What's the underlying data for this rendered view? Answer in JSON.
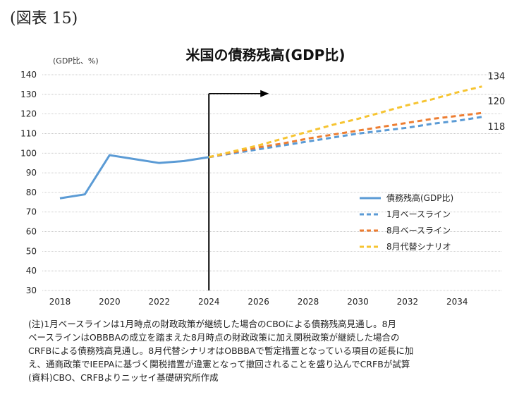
{
  "figure_label": "(図表 15)",
  "chart_data": {
    "type": "line",
    "title": "米国の債務残高(GDP比)",
    "unit_label": "(GDP比、%)",
    "xlim": [
      2017.5,
      2036
    ],
    "ylim": [
      30,
      140
    ],
    "y_ticks": [
      30,
      40,
      50,
      60,
      70,
      80,
      90,
      100,
      110,
      120,
      130,
      140
    ],
    "x_ticks": [
      2018,
      2020,
      2022,
      2024,
      2026,
      2028,
      2030,
      2032,
      2034
    ],
    "grid": "horizontal",
    "legend_position": "right-middle",
    "marker_year": 2024,
    "series": [
      {
        "name": "債務残高(GDP比)",
        "color": "#5b9bd5",
        "style": "solid",
        "x": [
          2018,
          2019,
          2020,
          2021,
          2022,
          2023,
          2024
        ],
        "y": [
          77,
          79,
          99,
          97,
          95,
          96,
          98
        ]
      },
      {
        "name": "1月ベースライン",
        "color": "#5b9bd5",
        "style": "dashed",
        "x": [
          2024,
          2025,
          2026,
          2027,
          2028,
          2029,
          2030,
          2031,
          2032,
          2033,
          2034,
          2035
        ],
        "y": [
          98,
          100,
          102,
          104,
          106,
          108,
          110,
          111.5,
          113,
          115,
          116.5,
          118.5
        ]
      },
      {
        "name": "8月ベースライン",
        "color": "#ed7d31",
        "style": "dashed",
        "x": [
          2024,
          2025,
          2026,
          2027,
          2028,
          2029,
          2030,
          2031,
          2032,
          2033,
          2034,
          2035
        ],
        "y": [
          98,
          100.5,
          103,
          105,
          107.5,
          109.5,
          111.5,
          113.5,
          115.5,
          117.5,
          119,
          120.5
        ]
      },
      {
        "name": "8月代替シナリオ",
        "color": "#f6c431",
        "style": "dashed",
        "x": [
          2024,
          2025,
          2026,
          2027,
          2028,
          2029,
          2030,
          2031,
          2032,
          2033,
          2034,
          2035
        ],
        "y": [
          98,
          101,
          104,
          107.5,
          111,
          114.5,
          117.5,
          121,
          124.5,
          127.5,
          131,
          134
        ]
      }
    ],
    "end_labels": [
      {
        "text": "134",
        "series": 3
      },
      {
        "text": "120",
        "series": 2
      },
      {
        "text": "118",
        "series": 1
      }
    ]
  },
  "notes": {
    "note_lines": [
      "(注)1月ベースラインは1月時点の財政政策が継続した場合のCBOによる債務残高見通し。8月",
      "ベースラインはOBBBAの成立を踏まえた8月時点の財政政策に加え関税政策が継続した場合の",
      "CRFBによる債務残高見通し。8月代替シナリオはOBBBAで暫定措置となっている項目の延長に加",
      "え、通商政策でIEEPAに基づく関税措置が違憲となって撤回されることを盛り込んでCRFBが試算"
    ],
    "source": "(資料)CBO、CRFBよりニッセイ基礎研究所作成"
  }
}
